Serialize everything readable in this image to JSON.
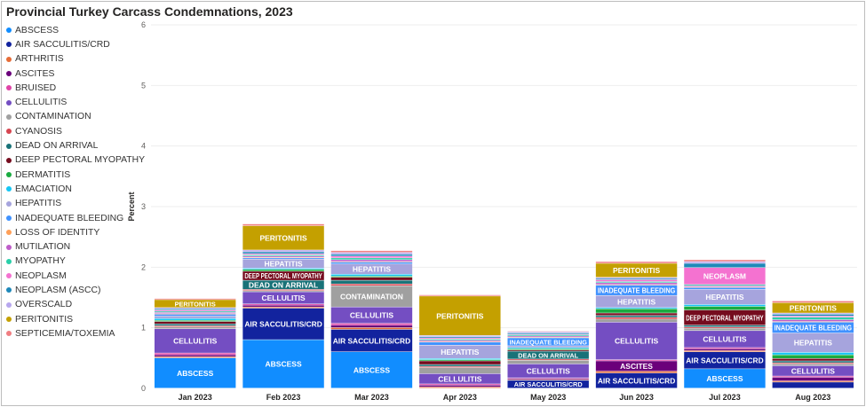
{
  "title": "Provincial Turkey Carcass Condemnations, 2023",
  "legend": [
    {
      "label": "ABSCESS",
      "color": "#118DFF"
    },
    {
      "label": "AIR SACCULITIS/CRD",
      "color": "#12239E"
    },
    {
      "label": "ARTHRITIS",
      "color": "#E66C37"
    },
    {
      "label": "ASCITES",
      "color": "#6B007B"
    },
    {
      "label": "BRUISED",
      "color": "#E044A7"
    },
    {
      "label": "CELLULITIS",
      "color": "#744EC2"
    },
    {
      "label": "CONTAMINATION",
      "color": "#A0A0A0"
    },
    {
      "label": "CYANOSIS",
      "color": "#D64550"
    },
    {
      "label": "DEAD ON ARRIVAL",
      "color": "#197278"
    },
    {
      "label": "DEEP PECTORAL MYOPATHY",
      "color": "#750C1E"
    },
    {
      "label": "DERMATITIS",
      "color": "#1AAB40"
    },
    {
      "label": "EMACIATION",
      "color": "#15C6F4"
    },
    {
      "label": "HEPATITIS",
      "color": "#A6A4DD"
    },
    {
      "label": "INADEQUATE BLEEDING",
      "color": "#4092FF"
    },
    {
      "label": "LOSS OF IDENTITY",
      "color": "#FFA058"
    },
    {
      "label": "MUTILATION",
      "color": "#BE5DC9"
    },
    {
      "label": "MYOPATHY",
      "color": "#2ACFA9"
    },
    {
      "label": "NEOPLASM",
      "color": "#F472D0"
    },
    {
      "label": "NEOPLASM (ASCC)",
      "color": "#1E88B9"
    },
    {
      "label": "OVERSCALD",
      "color": "#B7A7EE"
    },
    {
      "label": "PERITONITIS",
      "color": "#C4A000"
    },
    {
      "label": "SEPTICEMIA/TOXEMIA",
      "color": "#F07E82"
    }
  ],
  "chart_data": {
    "type": "bar",
    "stacked": true,
    "title": "Provincial Turkey Carcass Condemnations, 2023",
    "ylabel": "Percent",
    "xlabel": "",
    "ylim": [
      0,
      6
    ],
    "yticks": [
      0,
      1,
      2,
      3,
      4,
      5,
      6
    ],
    "grid": true,
    "legend_position": "left",
    "categories": [
      "Jan 2023",
      "Feb 2023",
      "Mar 2023",
      "Apr 2023",
      "May 2023",
      "Jun 2023",
      "Jul 2023",
      "Aug 2023"
    ],
    "series": [
      {
        "name": "ABSCESS",
        "values": [
          0.5,
          0.8,
          0.6,
          0.0,
          0.0,
          0.0,
          0.32,
          0.0
        ]
      },
      {
        "name": "AIR SACCULITIS/CRD",
        "values": [
          0.0,
          0.52,
          0.37,
          0.0,
          0.13,
          0.25,
          0.28,
          0.1
        ]
      },
      {
        "name": "ARTHRITIS",
        "values": [
          0.02,
          0.02,
          0.03,
          0.02,
          0.01,
          0.03,
          0.02,
          0.02
        ]
      },
      {
        "name": "ASCITES",
        "values": [
          0.03,
          0.03,
          0.04,
          0.03,
          0.02,
          0.17,
          0.03,
          0.06
        ]
      },
      {
        "name": "BRUISED",
        "values": [
          0.03,
          0.02,
          0.03,
          0.02,
          0.01,
          0.02,
          0.02,
          0.02
        ]
      },
      {
        "name": "CELLULITIS",
        "values": [
          0.4,
          0.2,
          0.27,
          0.17,
          0.23,
          0.62,
          0.28,
          0.17
        ]
      },
      {
        "name": "CONTAMINATION",
        "values": [
          0.03,
          0.02,
          0.35,
          0.1,
          0.06,
          0.05,
          0.04,
          0.03
        ]
      },
      {
        "name": "CYANOSIS",
        "values": [
          0.02,
          0.02,
          0.03,
          0.02,
          0.02,
          0.03,
          0.02,
          0.02
        ]
      },
      {
        "name": "DEAD ON ARRIVAL",
        "values": [
          0.03,
          0.15,
          0.06,
          0.03,
          0.13,
          0.03,
          0.03,
          0.03
        ]
      },
      {
        "name": "DEEP PECTORAL MYOPATHY",
        "values": [
          0.04,
          0.15,
          0.05,
          0.06,
          0.02,
          0.04,
          0.25,
          0.04
        ]
      },
      {
        "name": "DERMATITIS",
        "values": [
          0.02,
          0.03,
          0.02,
          0.02,
          0.02,
          0.07,
          0.06,
          0.06
        ]
      },
      {
        "name": "EMACIATION",
        "values": [
          0.03,
          0.02,
          0.03,
          0.02,
          0.02,
          0.02,
          0.03,
          0.04
        ]
      },
      {
        "name": "HEPATITIS",
        "values": [
          0.04,
          0.15,
          0.17,
          0.22,
          0.03,
          0.2,
          0.25,
          0.32
        ]
      },
      {
        "name": "INADEQUATE BLEEDING",
        "values": [
          0.03,
          0.02,
          0.03,
          0.05,
          0.13,
          0.17,
          0.03,
          0.18
        ]
      },
      {
        "name": "LOSS OF IDENTITY",
        "values": [
          0.01,
          0.01,
          0.01,
          0.01,
          0.01,
          0.01,
          0.01,
          0.01
        ]
      },
      {
        "name": "MUTILATION",
        "values": [
          0.02,
          0.02,
          0.03,
          0.02,
          0.02,
          0.03,
          0.02,
          0.03
        ]
      },
      {
        "name": "MYOPATHY",
        "values": [
          0.02,
          0.02,
          0.03,
          0.02,
          0.02,
          0.02,
          0.02,
          0.04
        ]
      },
      {
        "name": "NEOPLASM",
        "values": [
          0.02,
          0.02,
          0.03,
          0.02,
          0.01,
          0.03,
          0.28,
          0.02
        ]
      },
      {
        "name": "NEOPLASM (ASCC)",
        "values": [
          0.02,
          0.03,
          0.03,
          0.02,
          0.02,
          0.02,
          0.07,
          0.03
        ]
      },
      {
        "name": "OVERSCALD",
        "values": [
          0.02,
          0.03,
          0.03,
          0.02,
          0.02,
          0.02,
          0.03,
          0.02
        ]
      },
      {
        "name": "PERITONITIS",
        "values": [
          0.13,
          0.4,
          0.0,
          0.65,
          0.0,
          0.23,
          0.0,
          0.17
        ]
      },
      {
        "name": "SEPTICEMIA/TOXEMIA",
        "values": [
          0.02,
          0.03,
          0.03,
          0.02,
          0.01,
          0.03,
          0.03,
          0.03
        ]
      }
    ]
  }
}
